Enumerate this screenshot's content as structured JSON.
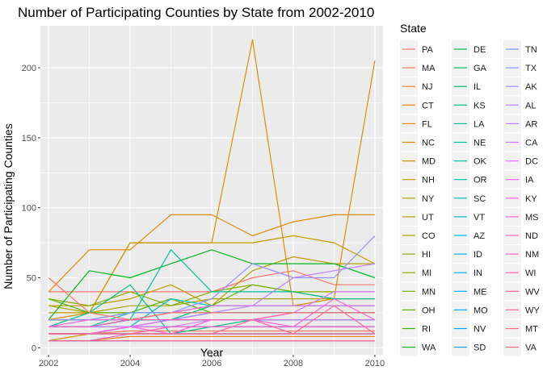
{
  "chart_data": {
    "type": "line",
    "title": "Number of Participating Counties by State from 2002-2010",
    "xlabel": "Year",
    "ylabel": "Number of Participating Counties",
    "x": [
      2002,
      2003,
      2004,
      2005,
      2006,
      2007,
      2008,
      2009,
      2010
    ],
    "xlim": [
      2001.8,
      2010.2
    ],
    "ylim": [
      -5,
      230
    ],
    "x_ticks": [
      2002,
      2004,
      2006,
      2008,
      2010
    ],
    "y_ticks": [
      0,
      50,
      100,
      150,
      200
    ],
    "grid": true,
    "legend_title": "State",
    "legend_position": "right",
    "series": [
      {
        "name": "PA",
        "color": "#F8766D",
        "values": [
          40,
          40,
          40,
          40,
          40,
          50,
          55,
          45,
          45
        ]
      },
      {
        "name": "MA",
        "color": "#F37B59",
        "values": [
          10,
          10,
          12,
          12,
          12,
          12,
          12,
          12,
          12
        ]
      },
      {
        "name": "NJ",
        "color": "#ED8141",
        "values": [
          20,
          20,
          20,
          20,
          20,
          20,
          20,
          20,
          20
        ]
      },
      {
        "name": "CT",
        "color": "#E7861B",
        "values": [
          5,
          5,
          8,
          8,
          8,
          8,
          8,
          8,
          8
        ]
      },
      {
        "name": "FL",
        "color": "#E08B00",
        "values": [
          40,
          70,
          70,
          95,
          95,
          80,
          90,
          95,
          95
        ]
      },
      {
        "name": "NC",
        "color": "#D89000",
        "values": [
          20,
          25,
          75,
          75,
          75,
          220,
          30,
          35,
          205
        ]
      },
      {
        "name": "MD",
        "color": "#CF9400",
        "values": [
          5,
          10,
          15,
          20,
          20,
          20,
          20,
          20,
          20
        ]
      },
      {
        "name": "NH",
        "color": "#C59900",
        "values": [
          25,
          25,
          75,
          75,
          75,
          75,
          80,
          75,
          60
        ]
      },
      {
        "name": "NY",
        "color": "#BB9D00",
        "values": [
          30,
          30,
          35,
          45,
          30,
          55,
          65,
          60,
          60
        ]
      },
      {
        "name": "UT",
        "color": "#B0A100",
        "values": [
          10,
          10,
          10,
          15,
          15,
          15,
          15,
          15,
          15
        ]
      },
      {
        "name": "CO",
        "color": "#A3A500",
        "values": [
          30,
          25,
          30,
          30,
          35,
          35,
          35,
          35,
          35
        ]
      },
      {
        "name": "HI",
        "color": "#95A900",
        "values": [
          5,
          5,
          5,
          5,
          5,
          5,
          5,
          5,
          5
        ]
      },
      {
        "name": "MI",
        "color": "#85AD00",
        "values": [
          35,
          30,
          40,
          30,
          40,
          45,
          40,
          40,
          40
        ]
      },
      {
        "name": "MN",
        "color": "#72B000",
        "values": [
          20,
          20,
          25,
          25,
          30,
          45,
          40,
          35,
          35
        ]
      },
      {
        "name": "OH",
        "color": "#5BB300",
        "values": [
          35,
          25,
          25,
          35,
          25,
          25,
          25,
          25,
          25
        ]
      },
      {
        "name": "RI",
        "color": "#39B600",
        "values": [
          5,
          5,
          5,
          5,
          5,
          5,
          5,
          5,
          5
        ]
      },
      {
        "name": "WA",
        "color": "#00B81F",
        "values": [
          20,
          55,
          50,
          60,
          70,
          60,
          60,
          60,
          50
        ]
      },
      {
        "name": "DE",
        "color": "#00BA42",
        "values": [
          5,
          5,
          5,
          5,
          5,
          5,
          5,
          5,
          5
        ]
      },
      {
        "name": "GA",
        "color": "#00BC59",
        "values": [
          20,
          20,
          20,
          25,
          25,
          25,
          25,
          25,
          25
        ]
      },
      {
        "name": "IL",
        "color": "#00BE6C",
        "values": [
          15,
          15,
          20,
          20,
          20,
          20,
          20,
          20,
          20
        ]
      },
      {
        "name": "KS",
        "color": "#00BF7D",
        "values": [
          15,
          15,
          20,
          20,
          30,
          30,
          30,
          30,
          30
        ]
      },
      {
        "name": "LA",
        "color": "#00C08D",
        "values": [
          15,
          25,
          45,
          10,
          15,
          20,
          20,
          20,
          20
        ]
      },
      {
        "name": "NE",
        "color": "#00C19C",
        "values": [
          15,
          15,
          20,
          70,
          40,
          40,
          40,
          35,
          35
        ]
      },
      {
        "name": "OK",
        "color": "#00C1AA",
        "values": [
          15,
          15,
          25,
          25,
          25,
          25,
          25,
          25,
          25
        ]
      },
      {
        "name": "OR",
        "color": "#00C0B8",
        "values": [
          15,
          15,
          20,
          20,
          20,
          20,
          20,
          20,
          20
        ]
      },
      {
        "name": "SC",
        "color": "#00BFC4",
        "values": [
          10,
          10,
          15,
          35,
          30,
          30,
          30,
          30,
          30
        ]
      },
      {
        "name": "VT",
        "color": "#00BDD0",
        "values": [
          5,
          5,
          5,
          5,
          5,
          5,
          5,
          5,
          5
        ]
      },
      {
        "name": "AZ",
        "color": "#00BBDB",
        "values": [
          10,
          10,
          10,
          10,
          10,
          10,
          10,
          10,
          10
        ]
      },
      {
        "name": "ID",
        "color": "#00B8E5",
        "values": [
          10,
          10,
          15,
          15,
          15,
          15,
          15,
          15,
          15
        ]
      },
      {
        "name": "IN",
        "color": "#00B4EF",
        "values": [
          15,
          15,
          15,
          15,
          15,
          15,
          15,
          15,
          15
        ]
      },
      {
        "name": "ME",
        "color": "#00B0F6",
        "values": [
          10,
          10,
          10,
          10,
          10,
          10,
          10,
          10,
          10
        ]
      },
      {
        "name": "MO",
        "color": "#00ABFD",
        "values": [
          15,
          15,
          20,
          20,
          25,
          25,
          25,
          25,
          25
        ]
      },
      {
        "name": "NV",
        "color": "#00A5FF",
        "values": [
          5,
          5,
          5,
          5,
          5,
          5,
          5,
          5,
          5
        ]
      },
      {
        "name": "SD",
        "color": "#1F9FFF",
        "values": [
          10,
          10,
          10,
          10,
          10,
          10,
          10,
          10,
          10
        ]
      },
      {
        "name": "TN",
        "color": "#6C98FF",
        "values": [
          15,
          15,
          15,
          20,
          20,
          20,
          20,
          20,
          20
        ]
      },
      {
        "name": "TX",
        "color": "#8F91FF",
        "values": [
          20,
          20,
          25,
          25,
          35,
          60,
          50,
          50,
          80
        ]
      },
      {
        "name": "AK",
        "color": "#A889FF",
        "values": [
          5,
          5,
          5,
          5,
          5,
          5,
          5,
          5,
          5
        ]
      },
      {
        "name": "AL",
        "color": "#BC81FF",
        "values": [
          10,
          10,
          15,
          20,
          25,
          30,
          50,
          55,
          60
        ]
      },
      {
        "name": "AR",
        "color": "#CB7BFF",
        "values": [
          10,
          10,
          15,
          15,
          20,
          20,
          20,
          20,
          20
        ]
      },
      {
        "name": "CA",
        "color": "#D875FF",
        "values": [
          15,
          15,
          15,
          20,
          20,
          20,
          25,
          40,
          40
        ]
      },
      {
        "name": "DC",
        "color": "#E370FA",
        "values": [
          5,
          5,
          5,
          5,
          5,
          5,
          5,
          5,
          5
        ]
      },
      {
        "name": "IA",
        "color": "#EC69EF",
        "values": [
          10,
          10,
          15,
          15,
          15,
          15,
          15,
          15,
          15
        ]
      },
      {
        "name": "KY",
        "color": "#F365E5",
        "values": [
          15,
          20,
          20,
          25,
          30,
          30,
          30,
          30,
          30
        ]
      },
      {
        "name": "MS",
        "color": "#F863D9",
        "values": [
          10,
          10,
          15,
          10,
          20,
          20,
          15,
          35,
          20
        ]
      },
      {
        "name": "ND",
        "color": "#FC61CC",
        "values": [
          5,
          5,
          10,
          10,
          10,
          10,
          10,
          10,
          10
        ]
      },
      {
        "name": "NM",
        "color": "#FE61BF",
        "values": [
          10,
          10,
          10,
          15,
          15,
          15,
          15,
          15,
          15
        ]
      },
      {
        "name": "WI",
        "color": "#FF62B0",
        "values": [
          15,
          15,
          20,
          20,
          20,
          20,
          25,
          25,
          25
        ]
      },
      {
        "name": "WV",
        "color": "#FF64A1",
        "values": [
          10,
          10,
          10,
          10,
          10,
          20,
          10,
          30,
          10
        ]
      },
      {
        "name": "WY",
        "color": "#FE6891",
        "values": [
          5,
          5,
          5,
          5,
          5,
          5,
          5,
          5,
          5
        ]
      },
      {
        "name": "MT",
        "color": "#FC6C80",
        "values": [
          10,
          10,
          10,
          10,
          10,
          10,
          10,
          10,
          10
        ]
      },
      {
        "name": "VA",
        "color": "#F8766D",
        "values": [
          50,
          25,
          20,
          25,
          25,
          25,
          25,
          25,
          25
        ]
      }
    ]
  }
}
